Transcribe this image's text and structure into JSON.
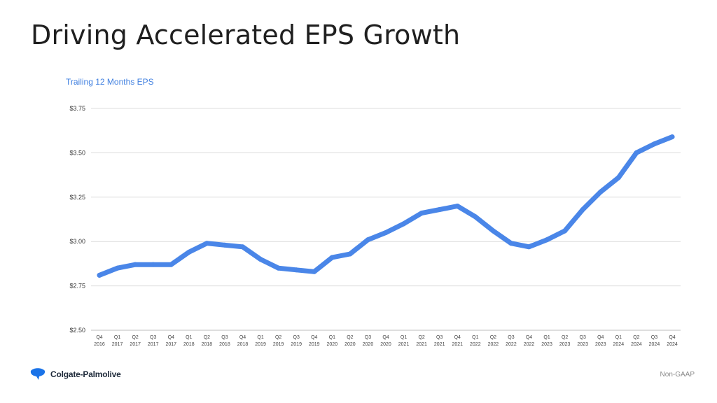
{
  "slide": {
    "title": "Driving Accelerated EPS Growth",
    "footnote": "Non-GAAP"
  },
  "logo": {
    "brand_name": "Colgate-Palmolive",
    "icon": "colgate-palmolive-logo-icon",
    "color": "#1a73e8"
  },
  "chart_data": {
    "type": "line",
    "title": "Trailing 12 Months EPS",
    "xlabel": "",
    "ylabel": "",
    "ylim": [
      2.5,
      3.75
    ],
    "y_ticks": [
      "$2.50",
      "$2.75",
      "$3.00",
      "$3.25",
      "$3.50",
      "$3.75"
    ],
    "y_tick_values": [
      2.5,
      2.75,
      3.0,
      3.25,
      3.5,
      3.75
    ],
    "grid": true,
    "line_color": "#4a86e8",
    "categories": [
      [
        "Q4",
        "2016"
      ],
      [
        "Q1",
        "2017"
      ],
      [
        "Q2",
        "2017"
      ],
      [
        "Q3",
        "2017"
      ],
      [
        "Q4",
        "2017"
      ],
      [
        "Q1",
        "2018"
      ],
      [
        "Q2",
        "2018"
      ],
      [
        "Q3",
        "2018"
      ],
      [
        "Q4",
        "2018"
      ],
      [
        "Q1",
        "2019"
      ],
      [
        "Q2",
        "2019"
      ],
      [
        "Q3",
        "2019"
      ],
      [
        "Q4",
        "2019"
      ],
      [
        "Q1",
        "2020"
      ],
      [
        "Q2",
        "2020"
      ],
      [
        "Q3",
        "2020"
      ],
      [
        "Q4",
        "2020"
      ],
      [
        "Q1",
        "2021"
      ],
      [
        "Q2",
        "2021"
      ],
      [
        "Q3",
        "2021"
      ],
      [
        "Q4",
        "2021"
      ],
      [
        "Q1",
        "2022"
      ],
      [
        "Q2",
        "2022"
      ],
      [
        "Q3",
        "2022"
      ],
      [
        "Q4",
        "2022"
      ],
      [
        "Q1",
        "2023"
      ],
      [
        "Q2",
        "2023"
      ],
      [
        "Q3",
        "2023"
      ],
      [
        "Q4",
        "2023"
      ],
      [
        "Q1",
        "2024"
      ],
      [
        "Q2",
        "2024"
      ],
      [
        "Q3",
        "2024"
      ],
      [
        "Q4",
        "2024"
      ]
    ],
    "series": [
      {
        "values": [
          2.81,
          2.85,
          2.87,
          2.87,
          2.87,
          2.94,
          2.99,
          2.98,
          2.97,
          2.9,
          2.85,
          2.84,
          2.83,
          2.91,
          2.93,
          3.01,
          3.05,
          3.1,
          3.16,
          3.18,
          3.2,
          3.14,
          3.06,
          2.99,
          2.97,
          3.01,
          3.06,
          3.18,
          3.28,
          3.36,
          3.5,
          3.55,
          3.59
        ]
      }
    ]
  }
}
